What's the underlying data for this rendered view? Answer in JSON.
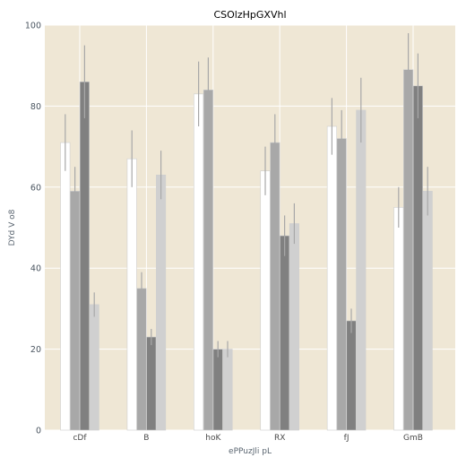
{
  "chart_data": {
    "type": "bar",
    "title": "CSOlzHpGXVhl",
    "xlabel": "ePPuzJli pL",
    "ylabel": "DYd V o8",
    "categories": [
      "cDf",
      "B",
      "hoK",
      "RX",
      "fJ",
      "GmB"
    ],
    "ylim": [
      0,
      100
    ],
    "yticks": [
      "0",
      "20",
      "40",
      "60",
      "80",
      "100"
    ],
    "grid": true,
    "series": [
      {
        "values": [
          71,
          67,
          83,
          64,
          75,
          55
        ],
        "errors": [
          7,
          7,
          8,
          6,
          7,
          5
        ],
        "color": "#ffffff"
      },
      {
        "values": [
          59,
          35,
          84,
          71,
          72,
          89
        ],
        "errors": [
          6,
          4,
          8,
          7,
          7,
          9
        ],
        "color": "#a8a8a8"
      },
      {
        "values": [
          86,
          23,
          20,
          48,
          27,
          85
        ],
        "errors": [
          9,
          2,
          2,
          5,
          3,
          8
        ],
        "color": "#808080"
      },
      {
        "values": [
          31,
          63,
          20,
          51,
          79,
          59
        ],
        "errors": [
          3,
          6,
          2,
          5,
          8,
          6
        ],
        "color": "#d0d0d0"
      }
    ],
    "colors": {
      "plot_bg": "#efe7d5",
      "gridline": "#ffffff",
      "bar_edge": "#cfcfcf",
      "errorbar": "#a8a8a8"
    }
  }
}
